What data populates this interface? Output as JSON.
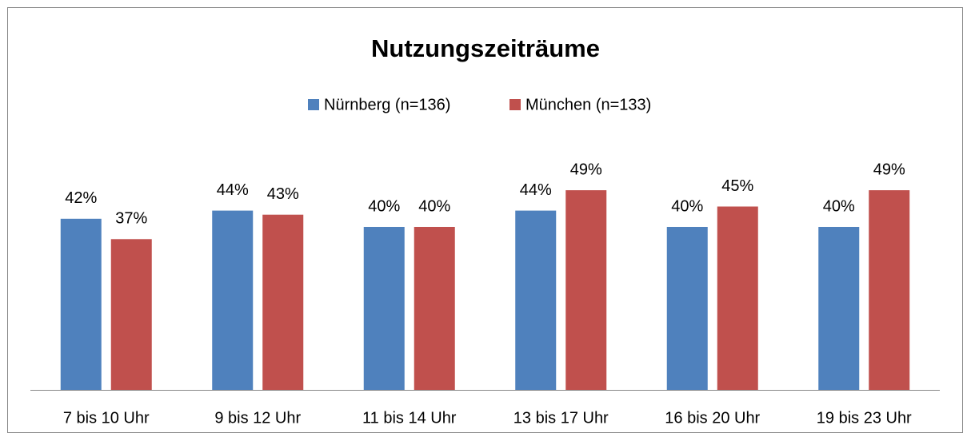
{
  "chart_data": {
    "type": "bar",
    "title": "Nutzungszeiträume",
    "categories": [
      "7 bis 10 Uhr",
      "9 bis 12 Uhr",
      "11 bis 14 Uhr",
      "13 bis 17 Uhr",
      "16 bis 20 Uhr",
      "19 bis 23 Uhr"
    ],
    "series": [
      {
        "name": "Nürnberg (n=136)",
        "color": "#4f81bd",
        "values": [
          42,
          44,
          40,
          44,
          40,
          40
        ],
        "value_labels": [
          "42%",
          "44%",
          "40%",
          "44%",
          "40%",
          "40%"
        ]
      },
      {
        "name": "München (n=133)",
        "color": "#c0504d",
        "values": [
          37,
          43,
          40,
          49,
          45,
          49
        ],
        "value_labels": [
          "37%",
          "43%",
          "40%",
          "49%",
          "45%",
          "49%"
        ]
      }
    ],
    "ylim": [
      0,
      60
    ],
    "legend": "top"
  }
}
